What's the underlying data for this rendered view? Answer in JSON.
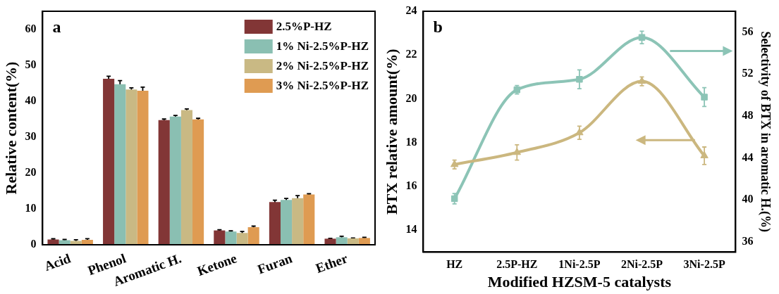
{
  "chart_data": [
    {
      "type": "bar",
      "ylabel": "Relative content(%)",
      "categories": [
        "Acid",
        "Phenol",
        "Aromatic H.",
        "Ketone",
        "Furan",
        "Ether"
      ],
      "ylim": [
        0,
        65
      ],
      "yticks": [
        0,
        10,
        20,
        30,
        40,
        50,
        60
      ],
      "legend": "top right",
      "annotations": [
        "a"
      ],
      "series": [
        {
          "name": "2.5%P-HZ",
          "color": "#823636",
          "values": [
            1.5,
            46.2,
            34.7,
            4.0,
            11.9,
            1.7
          ],
          "errors": [
            0.2,
            0.7,
            0.3,
            0.2,
            0.5,
            0.1
          ]
        },
        {
          "name": "1% Ni-2.5%P-HZ",
          "color": "#8abfb2",
          "values": [
            1.3,
            44.7,
            35.7,
            3.7,
            12.5,
            2.1
          ],
          "errors": [
            0.2,
            1.0,
            0.3,
            0.2,
            0.4,
            0.3
          ]
        },
        {
          "name": "2% Ni-2.5%P-HZ",
          "color": "#c9b984",
          "values": [
            1.1,
            43.2,
            37.5,
            3.3,
            13.0,
            1.8
          ],
          "errors": [
            0.3,
            0.5,
            0.3,
            0.4,
            0.7,
            0.1
          ]
        },
        {
          "name": "3% Ni-2.5%P-HZ",
          "color": "#df9b52",
          "values": [
            1.4,
            42.9,
            34.9,
            4.9,
            14.0,
            1.9
          ],
          "errors": [
            0.3,
            1.0,
            0.3,
            0.3,
            0.2,
            0.2
          ]
        }
      ]
    },
    {
      "type": "line",
      "xlabel": "Modified HZSM-5 catalysts",
      "ylabel": "BTX relative amount(%)",
      "y2label": "Selectivity of BTX in aromatic H.(%)",
      "categories": [
        "HZ",
        "2.5P-HZ",
        "1Ni-2.5P",
        "2Ni-2.5P",
        "3Ni-2.5P"
      ],
      "ylim": [
        13,
        24
      ],
      "yticks": [
        14,
        16,
        18,
        20,
        22,
        24
      ],
      "y2lim": [
        35,
        58
      ],
      "y2ticks": [
        36,
        40,
        44,
        48,
        52,
        56
      ],
      "annotations": [
        "b"
      ],
      "series": [
        {
          "color": "#cbb77f",
          "marker": "triangle",
          "values": [
            17.0,
            17.55,
            18.45,
            20.8,
            17.4
          ],
          "errors": [
            0.2,
            0.35,
            0.3,
            0.2,
            0.4
          ]
        },
        {
          "color": "#8cc4b6",
          "marker": "square",
          "axis": "y2",
          "values": [
            40.1,
            50.5,
            51.5,
            55.5,
            49.8
          ],
          "errors": [
            0.5,
            0.4,
            0.9,
            0.6,
            0.9
          ]
        }
      ]
    }
  ]
}
